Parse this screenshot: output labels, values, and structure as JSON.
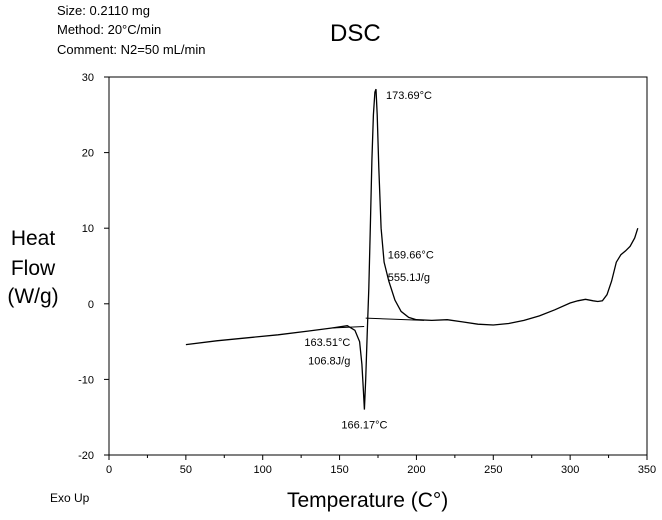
{
  "meta": {
    "size": "Size: 0.2110 mg",
    "method": "Method: 20°C/min",
    "comment": "Comment: N2=50 mL/min"
  },
  "footer_note": "Exo Up",
  "chart_data": {
    "type": "line",
    "title": "DSC",
    "xlabel": "Temperature (C°)",
    "ylabel": [
      "Heat",
      "Flow",
      "(W/g)"
    ],
    "xlim": [
      0,
      350
    ],
    "ylim": [
      -20,
      30
    ],
    "xticks": [
      0,
      50,
      100,
      150,
      200,
      250,
      300,
      350
    ],
    "yticks": [
      -20,
      -10,
      0,
      10,
      20,
      30
    ],
    "grid": false,
    "series": [
      {
        "x": [
          50,
          70,
          90,
          110,
          130,
          145,
          155,
          160,
          163,
          164.5,
          165.5,
          166.17,
          167,
          168,
          169,
          170,
          171,
          172,
          173,
          173.69,
          174.5,
          175.5,
          177,
          179,
          182,
          186,
          190,
          195,
          200,
          210,
          220,
          230,
          240,
          250,
          260,
          270,
          280,
          290,
          300,
          305,
          310,
          315,
          318,
          321,
          324,
          327,
          330,
          333,
          336,
          339,
          342,
          344
        ],
        "y": [
          -5.4,
          -4.9,
          -4.5,
          -4.1,
          -3.6,
          -3.2,
          -2.9,
          -3.5,
          -5,
          -8,
          -11.5,
          -14,
          -10,
          -4,
          2,
          10,
          19,
          25,
          28,
          28.4,
          25,
          18,
          10,
          5.5,
          3,
          0.5,
          -1,
          -1.8,
          -2.1,
          -2.2,
          -2.1,
          -2.4,
          -2.7,
          -2.8,
          -2.6,
          -2.2,
          -1.6,
          -0.8,
          0.1,
          0.4,
          0.6,
          0.4,
          0.3,
          0.4,
          1.2,
          3.0,
          5.5,
          6.5,
          7.0,
          7.6,
          8.7,
          10
        ]
      }
    ],
    "baselines": [
      {
        "x": [
          145,
          166
        ],
        "y": [
          -3.2,
          -3.0
        ]
      },
      {
        "x": [
          167,
          205
        ],
        "y": [
          -1.9,
          -2.2
        ]
      }
    ],
    "annotations": [
      {
        "x": 173.69,
        "y": 28.4,
        "text": "173.69°C"
      },
      {
        "x": 169.66,
        "y": 6.0,
        "text": "169.66°C"
      },
      {
        "x": 169.66,
        "y": 3.0,
        "text": "555.1J/g"
      },
      {
        "x": 163.51,
        "y": -5.6,
        "text": "163.51°C"
      },
      {
        "x": 163.51,
        "y": -8.0,
        "text": "106.8J/g"
      },
      {
        "x": 166.17,
        "y": -16.5,
        "text": "166.17°C"
      }
    ]
  }
}
